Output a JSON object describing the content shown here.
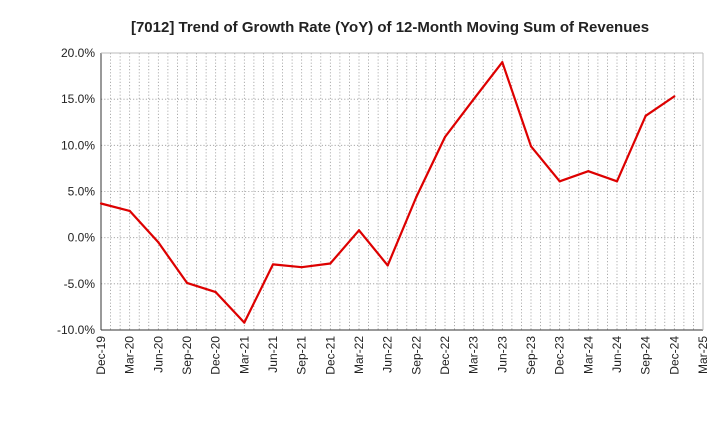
{
  "chart_data": {
    "type": "line",
    "title": "[7012]  Trend of Growth Rate (YoY) of 12-Month Moving Sum of Revenues",
    "xlabel": "",
    "ylabel": "",
    "x_ticks": [
      "Dec-19",
      "Mar-20",
      "Jun-20",
      "Sep-20",
      "Dec-20",
      "Mar-21",
      "Jun-21",
      "Sep-21",
      "Dec-21",
      "Mar-22",
      "Jun-22",
      "Sep-22",
      "Dec-22",
      "Mar-23",
      "Jun-23",
      "Sep-23",
      "Dec-23",
      "Mar-24",
      "Jun-24",
      "Sep-24",
      "Dec-24",
      "Mar-25"
    ],
    "y_ticks": [
      "20.0%",
      "15.0%",
      "10.0%",
      "5.0%",
      "0.0%",
      "-5.0%",
      "-10.0%"
    ],
    "y_tick_values": [
      20,
      15,
      10,
      5,
      0,
      -5,
      -10
    ],
    "ylim": [
      -10,
      20
    ],
    "grid": true,
    "series": [
      {
        "color": "#dd0000",
        "x": [
          "Dec-19",
          "Mar-20",
          "Jun-20",
          "Sep-20",
          "Dec-20",
          "Mar-21",
          "Jun-21",
          "Sep-21",
          "Dec-21",
          "Mar-22",
          "Jun-22",
          "Sep-22",
          "Dec-22",
          "Mar-23",
          "Jun-23",
          "Sep-23",
          "Dec-23",
          "Mar-24",
          "Jun-24",
          "Sep-24",
          "Dec-24"
        ],
        "values": [
          3.7,
          2.9,
          -0.5,
          -4.9,
          -5.9,
          -9.2,
          -2.9,
          -3.2,
          -2.8,
          0.8,
          -3.0,
          4.4,
          10.9,
          15.0,
          19.0,
          9.9,
          6.1,
          7.2,
          6.1,
          13.2,
          15.3
        ]
      }
    ]
  }
}
